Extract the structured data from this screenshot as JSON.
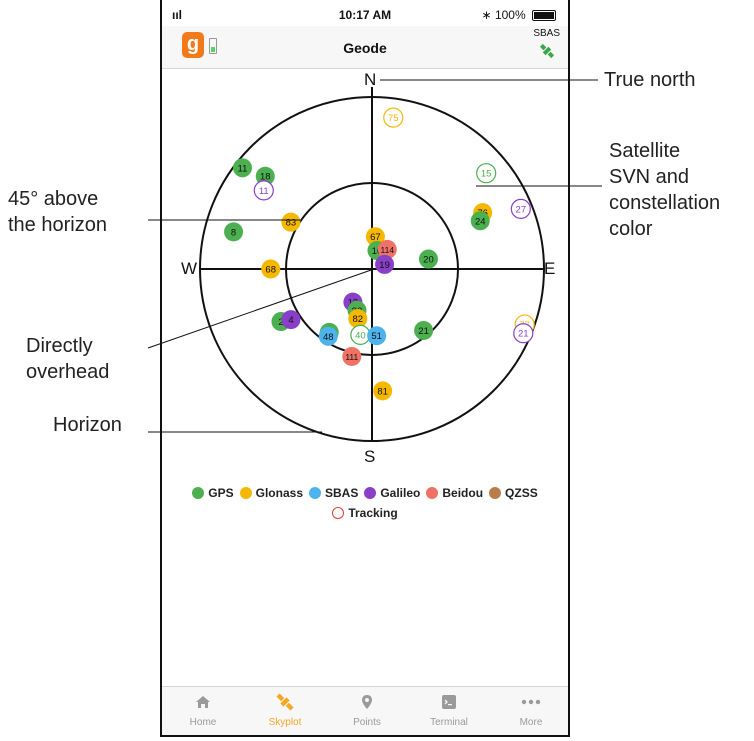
{
  "status": {
    "signal": "ııl",
    "time": "10:17 AM",
    "bluetooth": "∗",
    "battery": "100%"
  },
  "navbar": {
    "title": "Geode",
    "logo_letter": "g",
    "sbas_label": "SBAS"
  },
  "compass": {
    "n": "N",
    "s": "S",
    "e": "E",
    "w": "W"
  },
  "colors": {
    "GPS": "#4caf50",
    "Glonass": "#f5b800",
    "SBAS": "#4db3ec",
    "Galileo": "#8a3fc9",
    "Beidou": "#ef7266",
    "QZSS": "#b87d4b",
    "tracking": "#e53935",
    "accent": "#f5a623"
  },
  "satellites": [
    {
      "svn": "75",
      "constellation": "Glonass",
      "elevation": 10,
      "azimuth": 8,
      "tracking": false
    },
    {
      "svn": "15",
      "constellation": "GPS",
      "elevation": 12,
      "azimuth": 50,
      "tracking": false
    },
    {
      "svn": "76",
      "constellation": "Glonass",
      "elevation": 25,
      "azimuth": 63,
      "tracking": true
    },
    {
      "svn": "27",
      "constellation": "Galileo",
      "elevation": 6,
      "azimuth": 68,
      "tracking": false
    },
    {
      "svn": "24",
      "constellation": "GPS",
      "elevation": 28,
      "azimuth": 66,
      "tracking": true
    },
    {
      "svn": "11",
      "constellation": "GPS",
      "elevation": 4,
      "azimuth": 308,
      "tracking": true
    },
    {
      "svn": "18",
      "constellation": "GPS",
      "elevation": 16,
      "azimuth": 311,
      "tracking": true
    },
    {
      "svn": "11",
      "constellation": "Galileo",
      "elevation": 20,
      "azimuth": 306,
      "tracking": false
    },
    {
      "svn": "83",
      "constellation": "Glonass",
      "elevation": 41,
      "azimuth": 300,
      "tracking": true
    },
    {
      "svn": "8",
      "constellation": "GPS",
      "elevation": 15,
      "azimuth": 285,
      "tracking": true
    },
    {
      "svn": "67",
      "constellation": "Glonass",
      "elevation": 73,
      "azimuth": 6,
      "tracking": true
    },
    {
      "svn": "10",
      "constellation": "GPS",
      "elevation": 80,
      "azimuth": 15,
      "tracking": true
    },
    {
      "svn": "114",
      "constellation": "Beidou",
      "elevation": 77,
      "azimuth": 38,
      "tracking": true
    },
    {
      "svn": "19",
      "constellation": "Galileo",
      "elevation": 83,
      "azimuth": 70,
      "tracking": true
    },
    {
      "svn": "20",
      "constellation": "GPS",
      "elevation": 60,
      "azimuth": 80,
      "tracking": true
    },
    {
      "svn": "68",
      "constellation": "Glonass",
      "elevation": 37,
      "azimuth": 270,
      "tracking": true
    },
    {
      "svn": "12",
      "constellation": "Galileo",
      "elevation": 70,
      "azimuth": 210,
      "tracking": true
    },
    {
      "svn": "2",
      "constellation": "GPS",
      "elevation": 35,
      "azimuth": 240,
      "tracking": true
    },
    {
      "svn": "4",
      "constellation": "Galileo",
      "elevation": 40,
      "azimuth": 238,
      "tracking": true
    },
    {
      "svn": "32",
      "constellation": "GPS",
      "elevation": 67,
      "azimuth": 200,
      "tracking": true
    },
    {
      "svn": "82",
      "constellation": "Glonass",
      "elevation": 63,
      "azimuth": 196,
      "tracking": true
    },
    {
      "svn": "77",
      "constellation": "Glonass",
      "elevation": 5,
      "azimuth": 110,
      "tracking": false
    },
    {
      "svn": "21",
      "constellation": "Galileo",
      "elevation": 4,
      "azimuth": 113,
      "tracking": false
    },
    {
      "svn": "10",
      "constellation": "GPS",
      "elevation": 50,
      "azimuth": 214,
      "tracking": true
    },
    {
      "svn": "48",
      "constellation": "SBAS",
      "elevation": 48,
      "azimuth": 213,
      "tracking": true
    },
    {
      "svn": "40",
      "constellation": "GPS",
      "elevation": 55,
      "azimuth": 190,
      "tracking": false
    },
    {
      "svn": "51",
      "constellation": "SBAS",
      "elevation": 55,
      "azimuth": 176,
      "tracking": true
    },
    {
      "svn": "21",
      "constellation": "GPS",
      "elevation": 48,
      "azimuth": 140,
      "tracking": true
    },
    {
      "svn": "111",
      "constellation": "Beidou",
      "elevation": 43,
      "azimuth": 193,
      "tracking": true
    },
    {
      "svn": "81",
      "constellation": "Glonass",
      "elevation": 26,
      "azimuth": 175,
      "tracking": true
    }
  ],
  "legend": {
    "items": [
      {
        "label": "GPS",
        "key": "GPS"
      },
      {
        "label": "Glonass",
        "key": "Glonass"
      },
      {
        "label": "SBAS",
        "key": "SBAS"
      },
      {
        "label": "Galileo",
        "key": "Galileo"
      },
      {
        "label": "Beidou",
        "key": "Beidou"
      },
      {
        "label": "QZSS",
        "key": "QZSS"
      }
    ],
    "tracking_label": "Tracking"
  },
  "tabs": [
    {
      "label": "Home",
      "icon": "home-icon"
    },
    {
      "label": "Skyplot",
      "icon": "satellite-icon",
      "active": true
    },
    {
      "label": "Points",
      "icon": "map-pin-icon"
    },
    {
      "label": "Terminal",
      "icon": "terminal-icon"
    },
    {
      "label": "More",
      "icon": "more-dots-icon"
    }
  ],
  "callouts": {
    "true_north": "True north",
    "satellite": [
      "Satellite",
      "SVN and",
      "constellation",
      "color"
    ],
    "elev45": [
      "45° above",
      "the horizon"
    ],
    "overhead": [
      "Directly",
      "overhead"
    ],
    "horizon": "Horizon"
  }
}
